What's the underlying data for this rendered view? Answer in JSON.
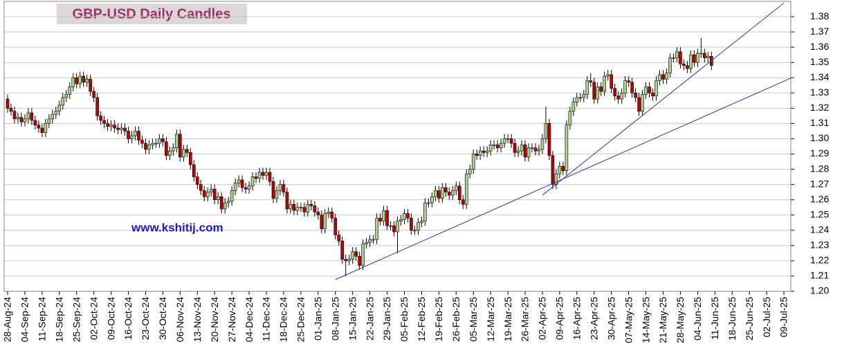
{
  "chart_data": {
    "type": "candlestick",
    "title": "GBP-USD Daily Candles",
    "annotation": "www.kshitij.com",
    "up_color": "#a9d18e",
    "down_color": "#c00000",
    "grid": true,
    "ylim": [
      1.2,
      1.39
    ],
    "yticks": [
      {
        "value": 1.2,
        "label": "1.20"
      },
      1.21,
      1.22,
      1.23,
      1.24,
      1.25,
      1.26,
      1.27,
      1.28,
      1.29,
      {
        "value": 1.3,
        "label": "1.30"
      },
      1.31,
      1.32,
      1.33,
      1.34,
      1.35,
      1.36,
      1.37,
      1.38
    ],
    "xlim": [
      "2024-08-27",
      "2025-07-11"
    ],
    "xticks": [
      {
        "value": "2024-08-28",
        "label": "28-Aug-24"
      },
      {
        "value": "2024-09-04",
        "label": "04-Sep-24"
      },
      {
        "value": "2024-09-11",
        "label": "11-Sep-24"
      },
      {
        "value": "2024-09-18",
        "label": "18-Sep-24"
      },
      {
        "value": "2024-09-25",
        "label": "25-Sep-24"
      },
      {
        "value": "2024-10-02",
        "label": "02-Oct-24"
      },
      {
        "value": "2024-10-09",
        "label": "09-Oct-24"
      },
      {
        "value": "2024-10-16",
        "label": "16-Oct-24"
      },
      {
        "value": "2024-10-23",
        "label": "23-Oct-24"
      },
      {
        "value": "2024-10-30",
        "label": "30-Oct-24"
      },
      {
        "value": "2024-11-06",
        "label": "06-Nov-24"
      },
      {
        "value": "2024-11-13",
        "label": "13-Nov-24"
      },
      {
        "value": "2024-11-20",
        "label": "20-Nov-24"
      },
      {
        "value": "2024-11-27",
        "label": "27-Nov-24"
      },
      {
        "value": "2024-12-04",
        "label": "04-Dec-24"
      },
      {
        "value": "2024-12-11",
        "label": "11-Dec-24"
      },
      {
        "value": "2024-12-18",
        "label": "18-Dec-24"
      },
      {
        "value": "2024-12-25",
        "label": "25-Dec-24"
      },
      {
        "value": "2025-01-01",
        "label": "01-Jan-25"
      },
      {
        "value": "2025-01-08",
        "label": "08-Jan-25"
      },
      {
        "value": "2025-01-15",
        "label": "15-Jan-25"
      },
      {
        "value": "2025-01-22",
        "label": "22-Jan-25"
      },
      {
        "value": "2025-01-29",
        "label": "29-Jan-25"
      },
      {
        "value": "2025-02-05",
        "label": "05-Feb-25"
      },
      {
        "value": "2025-02-12",
        "label": "12-Feb-25"
      },
      {
        "value": "2025-02-19",
        "label": "19-Feb-25"
      },
      {
        "value": "2025-02-26",
        "label": "26-Feb-25"
      },
      {
        "value": "2025-03-05",
        "label": "05-Mar-25"
      },
      {
        "value": "2025-03-12",
        "label": "12-Mar-25"
      },
      {
        "value": "2025-03-19",
        "label": "19-Mar-25"
      },
      {
        "value": "2025-03-26",
        "label": "26-Mar-25"
      },
      {
        "value": "2025-04-02",
        "label": "02-Apr-25"
      },
      {
        "value": "2025-04-09",
        "label": "09-Apr-25"
      },
      {
        "value": "2025-04-16",
        "label": "16-Apr-25"
      },
      {
        "value": "2025-04-23",
        "label": "23-Apr-25"
      },
      {
        "value": "2025-04-30",
        "label": "30-Apr-25"
      },
      {
        "value": "2025-05-07",
        "label": "07-May-25"
      },
      {
        "value": "2025-05-14",
        "label": "14-May-25"
      },
      {
        "value": "2025-05-21",
        "label": "21-May-25"
      },
      {
        "value": "2025-05-28",
        "label": "28-May-25"
      },
      {
        "value": "2025-06-04",
        "label": "04-Jun-25"
      },
      {
        "value": "2025-06-11",
        "label": "11-Jun-25"
      },
      {
        "value": "2025-06-18",
        "label": "18-Jun-25"
      },
      {
        "value": "2025-06-25",
        "label": "25-Jun-25"
      },
      {
        "value": "2025-07-02",
        "label": "02-Jul-25"
      },
      {
        "value": "2025-07-09",
        "label": "09-Jul-25"
      }
    ],
    "x": [
      "2024-08-28",
      "2024-08-29",
      "2024-08-30",
      "2024-09-02",
      "2024-09-03",
      "2024-09-04",
      "2024-09-05",
      "2024-09-06",
      "2024-09-09",
      "2024-09-10",
      "2024-09-11",
      "2024-09-12",
      "2024-09-13",
      "2024-09-16",
      "2024-09-17",
      "2024-09-18",
      "2024-09-19",
      "2024-09-20",
      "2024-09-23",
      "2024-09-24",
      "2024-09-25",
      "2024-09-26",
      "2024-09-27",
      "2024-09-30",
      "2024-10-01",
      "2024-10-02",
      "2024-10-03",
      "2024-10-04",
      "2024-10-07",
      "2024-10-08",
      "2024-10-09",
      "2024-10-10",
      "2024-10-11",
      "2024-10-14",
      "2024-10-15",
      "2024-10-16",
      "2024-10-17",
      "2024-10-18",
      "2024-10-21",
      "2024-10-22",
      "2024-10-23",
      "2024-10-24",
      "2024-10-25",
      "2024-10-28",
      "2024-10-29",
      "2024-10-30",
      "2024-10-31",
      "2024-11-01",
      "2024-11-04",
      "2024-11-05",
      "2024-11-06",
      "2024-11-07",
      "2024-11-08",
      "2024-11-11",
      "2024-11-12",
      "2024-11-13",
      "2024-11-14",
      "2024-11-15",
      "2024-11-18",
      "2024-11-19",
      "2024-11-20",
      "2024-11-21",
      "2024-11-22",
      "2024-11-25",
      "2024-11-26",
      "2024-11-27",
      "2024-11-28",
      "2024-11-29",
      "2024-12-02",
      "2024-12-03",
      "2024-12-04",
      "2024-12-05",
      "2024-12-06",
      "2024-12-09",
      "2024-12-10",
      "2024-12-11",
      "2024-12-12",
      "2024-12-13",
      "2024-12-16",
      "2024-12-17",
      "2024-12-18",
      "2024-12-19",
      "2024-12-20",
      "2024-12-23",
      "2024-12-24",
      "2024-12-25",
      "2024-12-26",
      "2024-12-27",
      "2024-12-30",
      "2024-12-31",
      "2025-01-01",
      "2025-01-02",
      "2025-01-03",
      "2025-01-06",
      "2025-01-07",
      "2025-01-08",
      "2025-01-09",
      "2025-01-10",
      "2025-01-13",
      "2025-01-14",
      "2025-01-15",
      "2025-01-16",
      "2025-01-17",
      "2025-01-20",
      "2025-01-21",
      "2025-01-22",
      "2025-01-23",
      "2025-01-24",
      "2025-01-27",
      "2025-01-28",
      "2025-01-29",
      "2025-01-30",
      "2025-01-31",
      "2025-02-03",
      "2025-02-04",
      "2025-02-05",
      "2025-02-06",
      "2025-02-07",
      "2025-02-10",
      "2025-02-11",
      "2025-02-12",
      "2025-02-13",
      "2025-02-14",
      "2025-02-17",
      "2025-02-18",
      "2025-02-19",
      "2025-02-20",
      "2025-02-21",
      "2025-02-24",
      "2025-02-25",
      "2025-02-26",
      "2025-02-27",
      "2025-02-28",
      "2025-03-03",
      "2025-03-04",
      "2025-03-05",
      "2025-03-06",
      "2025-03-07",
      "2025-03-10",
      "2025-03-11",
      "2025-03-12",
      "2025-03-13",
      "2025-03-14",
      "2025-03-17",
      "2025-03-18",
      "2025-03-19",
      "2025-03-20",
      "2025-03-21",
      "2025-03-24",
      "2025-03-25",
      "2025-03-26",
      "2025-03-27",
      "2025-03-28",
      "2025-03-31",
      "2025-04-01",
      "2025-04-02",
      "2025-04-03",
      "2025-04-04",
      "2025-04-07",
      "2025-04-08",
      "2025-04-09",
      "2025-04-10",
      "2025-04-11",
      "2025-04-14",
      "2025-04-15",
      "2025-04-16",
      "2025-04-17",
      "2025-04-18",
      "2025-04-21",
      "2025-04-22",
      "2025-04-23",
      "2025-04-24",
      "2025-04-25",
      "2025-04-28",
      "2025-04-29",
      "2025-04-30",
      "2025-05-01",
      "2025-05-02",
      "2025-05-05",
      "2025-05-06",
      "2025-05-07",
      "2025-05-08",
      "2025-05-09",
      "2025-05-12",
      "2025-05-13",
      "2025-05-14",
      "2025-05-15",
      "2025-05-16",
      "2025-05-19",
      "2025-05-20",
      "2025-05-21",
      "2025-05-22",
      "2025-05-23",
      "2025-05-26",
      "2025-05-27",
      "2025-05-28",
      "2025-05-29",
      "2025-05-30",
      "2025-06-02",
      "2025-06-03",
      "2025-06-04",
      "2025-06-05",
      "2025-06-06",
      "2025-06-09",
      "2025-06-10"
    ],
    "open": [
      1.326,
      1.32,
      1.318,
      1.313,
      1.314,
      1.311,
      1.313,
      1.317,
      1.312,
      1.309,
      1.307,
      1.304,
      1.31,
      1.313,
      1.316,
      1.318,
      1.322,
      1.327,
      1.329,
      1.334,
      1.34,
      1.336,
      1.341,
      1.337,
      1.339,
      1.331,
      1.327,
      1.315,
      1.312,
      1.31,
      1.308,
      1.309,
      1.307,
      1.306,
      1.307,
      1.305,
      1.3,
      1.302,
      1.305,
      1.299,
      1.297,
      1.293,
      1.296,
      1.297,
      1.297,
      1.3,
      1.298,
      1.289,
      1.292,
      1.294,
      1.303,
      1.288,
      1.293,
      1.291,
      1.283,
      1.275,
      1.27,
      1.266,
      1.262,
      1.265,
      1.267,
      1.26,
      1.262,
      1.254,
      1.258,
      1.259,
      1.266,
      1.271,
      1.273,
      1.268,
      1.267,
      1.269,
      1.275,
      1.274,
      1.278,
      1.276,
      1.278,
      1.272,
      1.261,
      1.266,
      1.27,
      1.265,
      1.254,
      1.257,
      1.253,
      1.255,
      1.255,
      1.252,
      1.257,
      1.256,
      1.252,
      1.25,
      1.241,
      1.251,
      1.252,
      1.248,
      1.237,
      1.233,
      1.221,
      1.22,
      1.221,
      1.226,
      1.223,
      1.217,
      1.231,
      1.232,
      1.234,
      1.234,
      1.248,
      1.246,
      1.253,
      1.243,
      1.243,
      1.239,
      1.246,
      1.247,
      1.251,
      1.248,
      1.24,
      1.24,
      1.245,
      1.246,
      1.258,
      1.258,
      1.262,
      1.266,
      1.261,
      1.268,
      1.265,
      1.263,
      1.266,
      1.269,
      1.26,
      1.257,
      1.277,
      1.28,
      1.29,
      1.289,
      1.292,
      1.291,
      1.292,
      1.296,
      1.296,
      1.294,
      1.297,
      1.3,
      1.3,
      1.297,
      1.291,
      1.292,
      1.296,
      1.288,
      1.294,
      1.294,
      1.292,
      1.293,
      1.3,
      1.31,
      1.289,
      1.27,
      1.277,
      1.282,
      1.279,
      1.309,
      1.318,
      1.324,
      1.327,
      1.327,
      1.329,
      1.338,
      1.337,
      1.326,
      1.334,
      1.331,
      1.341,
      1.342,
      1.333,
      1.328,
      1.326,
      1.33,
      1.338,
      1.337,
      1.33,
      1.327,
      1.318,
      1.329,
      1.334,
      1.33,
      1.328,
      1.338,
      1.342,
      1.339,
      1.343,
      1.353,
      1.353,
      1.357,
      1.349,
      1.348,
      1.346,
      1.355,
      1.35,
      1.356,
      1.356,
      1.353,
      1.354
    ],
    "high": [
      1.329,
      1.323,
      1.321,
      1.317,
      1.317,
      1.316,
      1.32,
      1.32,
      1.315,
      1.312,
      1.31,
      1.313,
      1.316,
      1.319,
      1.321,
      1.325,
      1.33,
      1.332,
      1.337,
      1.343,
      1.343,
      1.344,
      1.344,
      1.342,
      1.342,
      1.334,
      1.33,
      1.318,
      1.315,
      1.313,
      1.312,
      1.312,
      1.31,
      1.31,
      1.31,
      1.308,
      1.305,
      1.308,
      1.308,
      1.302,
      1.3,
      1.299,
      1.3,
      1.3,
      1.303,
      1.303,
      1.301,
      1.295,
      1.297,
      1.306,
      1.306,
      1.296,
      1.296,
      1.294,
      1.286,
      1.278,
      1.273,
      1.269,
      1.268,
      1.27,
      1.27,
      1.265,
      1.265,
      1.261,
      1.262,
      1.269,
      1.274,
      1.276,
      1.276,
      1.271,
      1.272,
      1.278,
      1.278,
      1.281,
      1.281,
      1.281,
      1.281,
      1.275,
      1.269,
      1.273,
      1.273,
      1.268,
      1.26,
      1.26,
      1.258,
      1.258,
      1.258,
      1.26,
      1.26,
      1.259,
      1.255,
      1.253,
      1.254,
      1.255,
      1.255,
      1.251,
      1.24,
      1.236,
      1.224,
      1.224,
      1.229,
      1.229,
      1.226,
      1.234,
      1.235,
      1.237,
      1.237,
      1.251,
      1.251,
      1.256,
      1.256,
      1.246,
      1.246,
      1.249,
      1.25,
      1.254,
      1.254,
      1.251,
      1.243,
      1.248,
      1.249,
      1.261,
      1.261,
      1.265,
      1.269,
      1.269,
      1.271,
      1.271,
      1.268,
      1.269,
      1.272,
      1.272,
      1.263,
      1.28,
      1.283,
      1.293,
      1.293,
      1.295,
      1.295,
      1.295,
      1.299,
      1.299,
      1.299,
      1.3,
      1.303,
      1.303,
      1.303,
      1.3,
      1.295,
      1.299,
      1.299,
      1.297,
      1.297,
      1.297,
      1.296,
      1.303,
      1.321,
      1.313,
      1.292,
      1.28,
      1.285,
      1.285,
      1.312,
      1.321,
      1.327,
      1.33,
      1.33,
      1.332,
      1.341,
      1.343,
      1.34,
      1.337,
      1.337,
      1.344,
      1.345,
      1.345,
      1.336,
      1.331,
      1.333,
      1.341,
      1.341,
      1.34,
      1.333,
      1.33,
      1.332,
      1.337,
      1.337,
      1.333,
      1.341,
      1.345,
      1.345,
      1.346,
      1.356,
      1.356,
      1.36,
      1.36,
      1.352,
      1.351,
      1.358,
      1.358,
      1.359,
      1.366,
      1.359,
      1.357,
      1.357
    ],
    "low": [
      1.317,
      1.315,
      1.31,
      1.31,
      1.308,
      1.308,
      1.31,
      1.309,
      1.306,
      1.304,
      1.301,
      1.301,
      1.307,
      1.31,
      1.313,
      1.315,
      1.319,
      1.324,
      1.326,
      1.331,
      1.333,
      1.333,
      1.334,
      1.334,
      1.328,
      1.324,
      1.312,
      1.309,
      1.307,
      1.305,
      1.305,
      1.304,
      1.303,
      1.303,
      1.302,
      1.297,
      1.297,
      1.299,
      1.296,
      1.294,
      1.29,
      1.29,
      1.293,
      1.294,
      1.294,
      1.295,
      1.286,
      1.286,
      1.289,
      1.291,
      1.285,
      1.285,
      1.288,
      1.28,
      1.272,
      1.267,
      1.263,
      1.259,
      1.259,
      1.262,
      1.257,
      1.257,
      1.251,
      1.251,
      1.255,
      1.256,
      1.263,
      1.268,
      1.265,
      1.264,
      1.264,
      1.266,
      1.271,
      1.271,
      1.273,
      1.273,
      1.269,
      1.258,
      1.258,
      1.263,
      1.262,
      1.251,
      1.251,
      1.25,
      1.25,
      1.252,
      1.249,
      1.249,
      1.253,
      1.249,
      1.247,
      1.238,
      1.238,
      1.248,
      1.245,
      1.234,
      1.23,
      1.218,
      1.21,
      1.217,
      1.218,
      1.22,
      1.214,
      1.214,
      1.228,
      1.229,
      1.231,
      1.231,
      1.243,
      1.243,
      1.24,
      1.24,
      1.236,
      1.225,
      1.243,
      1.244,
      1.245,
      1.237,
      1.237,
      1.237,
      1.242,
      1.243,
      1.255,
      1.255,
      1.259,
      1.258,
      1.258,
      1.262,
      1.26,
      1.26,
      1.263,
      1.257,
      1.254,
      1.254,
      1.274,
      1.277,
      1.286,
      1.286,
      1.288,
      1.288,
      1.289,
      1.293,
      1.291,
      1.291,
      1.294,
      1.297,
      1.294,
      1.288,
      1.288,
      1.289,
      1.285,
      1.285,
      1.291,
      1.289,
      1.289,
      1.29,
      1.297,
      1.286,
      1.267,
      1.267,
      1.274,
      1.276,
      1.276,
      1.306,
      1.315,
      1.321,
      1.324,
      1.324,
      1.326,
      1.334,
      1.323,
      1.323,
      1.328,
      1.328,
      1.338,
      1.33,
      1.325,
      1.323,
      1.323,
      1.327,
      1.334,
      1.327,
      1.324,
      1.315,
      1.315,
      1.326,
      1.327,
      1.325,
      1.325,
      1.335,
      1.336,
      1.336,
      1.34,
      1.35,
      1.35,
      1.346,
      1.345,
      1.343,
      1.343,
      1.347,
      1.347,
      1.353,
      1.35,
      1.35,
      1.345
    ],
    "close": [
      1.32,
      1.318,
      1.313,
      1.314,
      1.311,
      1.313,
      1.317,
      1.312,
      1.309,
      1.307,
      1.304,
      1.31,
      1.313,
      1.316,
      1.318,
      1.322,
      1.327,
      1.329,
      1.334,
      1.34,
      1.336,
      1.341,
      1.337,
      1.339,
      1.331,
      1.327,
      1.315,
      1.312,
      1.31,
      1.308,
      1.309,
      1.307,
      1.306,
      1.307,
      1.305,
      1.3,
      1.302,
      1.305,
      1.299,
      1.297,
      1.293,
      1.296,
      1.297,
      1.297,
      1.3,
      1.298,
      1.289,
      1.292,
      1.294,
      1.303,
      1.288,
      1.293,
      1.291,
      1.283,
      1.275,
      1.27,
      1.266,
      1.262,
      1.265,
      1.267,
      1.26,
      1.262,
      1.254,
      1.258,
      1.259,
      1.266,
      1.271,
      1.273,
      1.268,
      1.267,
      1.269,
      1.275,
      1.274,
      1.278,
      1.276,
      1.278,
      1.272,
      1.261,
      1.266,
      1.27,
      1.265,
      1.254,
      1.257,
      1.253,
      1.255,
      1.255,
      1.252,
      1.257,
      1.256,
      1.252,
      1.25,
      1.241,
      1.251,
      1.252,
      1.248,
      1.237,
      1.233,
      1.221,
      1.22,
      1.221,
      1.226,
      1.223,
      1.217,
      1.231,
      1.232,
      1.234,
      1.234,
      1.248,
      1.246,
      1.253,
      1.243,
      1.243,
      1.239,
      1.246,
      1.247,
      1.251,
      1.248,
      1.24,
      1.24,
      1.245,
      1.246,
      1.258,
      1.258,
      1.262,
      1.266,
      1.261,
      1.268,
      1.265,
      1.263,
      1.266,
      1.269,
      1.26,
      1.257,
      1.277,
      1.28,
      1.29,
      1.289,
      1.292,
      1.291,
      1.292,
      1.296,
      1.296,
      1.294,
      1.297,
      1.3,
      1.3,
      1.297,
      1.291,
      1.292,
      1.296,
      1.288,
      1.294,
      1.294,
      1.292,
      1.293,
      1.3,
      1.31,
      1.289,
      1.27,
      1.277,
      1.282,
      1.279,
      1.309,
      1.318,
      1.324,
      1.327,
      1.327,
      1.329,
      1.338,
      1.337,
      1.326,
      1.334,
      1.331,
      1.341,
      1.342,
      1.333,
      1.328,
      1.326,
      1.33,
      1.338,
      1.337,
      1.33,
      1.327,
      1.318,
      1.329,
      1.334,
      1.33,
      1.328,
      1.338,
      1.342,
      1.339,
      1.343,
      1.353,
      1.353,
      1.357,
      1.349,
      1.348,
      1.346,
      1.355,
      1.35,
      1.356,
      1.356,
      1.353,
      1.354,
      1.348
    ],
    "trendlines": [
      {
        "x": [
          "2025-01-08",
          "2025-07-11"
        ],
        "y": [
          1.2077,
          1.3397
        ],
        "color": "#33339a"
      },
      {
        "x": [
          "2025-04-02",
          "2025-07-09"
        ],
        "y": [
          1.263,
          1.389
        ],
        "color": "#33339a"
      }
    ]
  }
}
